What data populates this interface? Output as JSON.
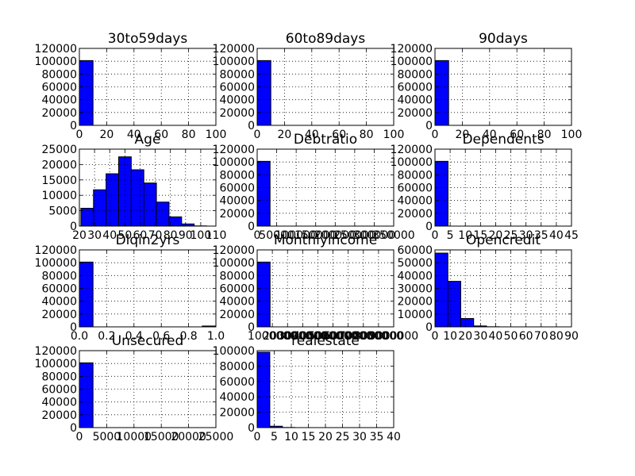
{
  "figure": {
    "bar_color": "#0000ff",
    "edge_color": "#000000",
    "background": "#ffffff",
    "grid": true
  },
  "chart_data": [
    {
      "type": "bar",
      "title": "30to59days",
      "xlim": [
        0,
        100
      ],
      "ylim": [
        0,
        120000
      ],
      "xticks": [
        0,
        20,
        40,
        60,
        80,
        100
      ],
      "yticks": [
        0,
        20000,
        40000,
        60000,
        80000,
        100000,
        120000
      ],
      "bins": [
        [
          0,
          10,
          101000
        ]
      ]
    },
    {
      "type": "bar",
      "title": "60to89days",
      "xlim": [
        0,
        100
      ],
      "ylim": [
        0,
        120000
      ],
      "xticks": [
        0,
        20,
        40,
        60,
        80,
        100
      ],
      "yticks": [
        0,
        20000,
        40000,
        60000,
        80000,
        100000,
        120000
      ],
      "bins": [
        [
          0,
          10,
          101000
        ]
      ]
    },
    {
      "type": "bar",
      "title": "90days",
      "xlim": [
        0,
        100
      ],
      "ylim": [
        0,
        120000
      ],
      "xticks": [
        0,
        20,
        40,
        60,
        80,
        100
      ],
      "yticks": [
        0,
        20000,
        40000,
        60000,
        80000,
        100000,
        120000
      ],
      "bins": [
        [
          0,
          10,
          101000
        ]
      ]
    },
    {
      "type": "bar",
      "title": "Age",
      "xlim": [
        20,
        110
      ],
      "ylim": [
        0,
        25000
      ],
      "xticks": [
        20,
        30,
        40,
        50,
        60,
        70,
        80,
        90,
        100,
        110
      ],
      "yticks": [
        0,
        5000,
        10000,
        15000,
        20000,
        25000
      ],
      "bins": [
        [
          21,
          29.3,
          5800
        ],
        [
          29.3,
          37.6,
          11800
        ],
        [
          37.6,
          45.9,
          17000
        ],
        [
          45.9,
          54.2,
          22500
        ],
        [
          54.2,
          62.5,
          18300
        ],
        [
          62.5,
          70.8,
          14000
        ],
        [
          70.8,
          79.1,
          7800
        ],
        [
          79.1,
          87.4,
          3000
        ],
        [
          87.4,
          95.7,
          700
        ],
        [
          95.7,
          104,
          60
        ]
      ]
    },
    {
      "type": "bar",
      "title": "Debtratio",
      "xlim": [
        0,
        350000
      ],
      "ylim": [
        0,
        120000
      ],
      "xticks": [
        0,
        50000,
        100000,
        150000,
        200000,
        250000,
        300000,
        350000
      ],
      "yticks": [
        0,
        20000,
        40000,
        60000,
        80000,
        100000,
        120000
      ],
      "bins": [
        [
          0,
          33000,
          101000
        ]
      ]
    },
    {
      "type": "bar",
      "title": "Dependents",
      "xlim": [
        0,
        45
      ],
      "ylim": [
        0,
        120000
      ],
      "xticks": [
        0,
        5,
        10,
        15,
        20,
        25,
        30,
        35,
        40,
        45
      ],
      "yticks": [
        0,
        20000,
        40000,
        60000,
        80000,
        100000,
        120000
      ],
      "bins": [
        [
          0,
          4.3,
          101000
        ]
      ]
    },
    {
      "type": "bar",
      "title": "Dlqin2yrs",
      "xlim": [
        0,
        1
      ],
      "ylim": [
        0,
        120000
      ],
      "xticks": [
        0.0,
        0.2,
        0.4,
        0.6,
        0.8,
        1.0
      ],
      "yticks": [
        0,
        20000,
        40000,
        60000,
        80000,
        100000,
        120000
      ],
      "bins": [
        [
          0,
          0.1,
          101000
        ],
        [
          0.9,
          1.0,
          1300
        ]
      ]
    },
    {
      "type": "bar",
      "title": "Monthlyincome",
      "xlim": [
        0,
        9000000
      ],
      "ylim": [
        0,
        120000
      ],
      "xticks": [
        1000000,
        2000000,
        3000000,
        4000000,
        5000000,
        6000000,
        7000000,
        8000000,
        9000000
      ],
      "yticks": [
        0,
        20000,
        40000,
        60000,
        80000,
        100000,
        120000
      ],
      "bins": [
        [
          0,
          850000,
          101000
        ]
      ]
    },
    {
      "type": "bar",
      "title": "Opencredit",
      "xlim": [
        0,
        90
      ],
      "ylim": [
        0,
        60000
      ],
      "xticks": [
        0,
        10,
        20,
        30,
        40,
        50,
        60,
        70,
        80,
        90
      ],
      "yticks": [
        0,
        10000,
        20000,
        30000,
        40000,
        50000,
        60000
      ],
      "bins": [
        [
          0,
          8.5,
          57500
        ],
        [
          8.5,
          17,
          35500
        ],
        [
          17,
          25.5,
          6500
        ],
        [
          25.5,
          34,
          700
        ],
        [
          34,
          42.5,
          100
        ]
      ]
    },
    {
      "type": "bar",
      "title": "Unsecured",
      "xlim": [
        0,
        25000
      ],
      "ylim": [
        0,
        120000
      ],
      "xticks": [
        0,
        5000,
        10000,
        15000,
        20000,
        25000
      ],
      "yticks": [
        0,
        20000,
        40000,
        60000,
        80000,
        100000,
        120000
      ],
      "bins": [
        [
          0,
          2500,
          101000
        ]
      ]
    },
    {
      "type": "bar",
      "title": "realestate",
      "xlim": [
        0,
        40
      ],
      "ylim": [
        0,
        100000
      ],
      "xticks": [
        0,
        5,
        10,
        15,
        20,
        25,
        30,
        35,
        40
      ],
      "yticks": [
        0,
        20000,
        40000,
        60000,
        80000,
        100000
      ],
      "bins": [
        [
          0,
          3.7,
          98000
        ],
        [
          3.7,
          7.4,
          1800
        ],
        [
          7.4,
          11.1,
          200
        ]
      ]
    }
  ]
}
